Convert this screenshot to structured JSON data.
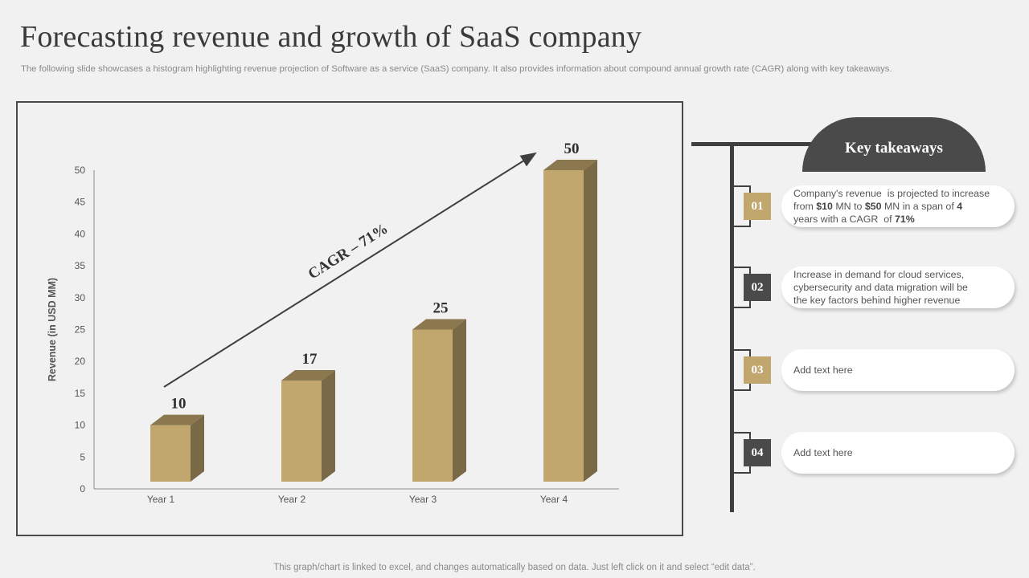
{
  "header": {
    "title": "Forecasting revenue and growth of SaaS company",
    "subtitle": "The following slide showcases a histogram highlighting revenue projection of Software as a service (SaaS) company. It also provides information about compound annual growth rate (CAGR) along with key takeaways."
  },
  "chart_data": {
    "type": "bar",
    "categories": [
      "Year 1",
      "Year 2",
      "Year 3",
      "Year 4"
    ],
    "values": [
      10,
      17,
      25,
      50
    ],
    "data_labels": [
      "10",
      "17",
      "25",
      "50"
    ],
    "xlabel": "",
    "ylabel": "Revenue (in USD MM)",
    "ylim": [
      0,
      50
    ],
    "yticks": [
      0,
      5,
      10,
      15,
      20,
      25,
      30,
      35,
      40,
      45,
      50
    ],
    "annotation": "CAGR – 71%",
    "grid": false,
    "legend": "none",
    "colors": {
      "bar_front": "#c1a66e",
      "bar_side": "#7a6946",
      "bar_top": "#8c784f",
      "arrow": "#3f3f3f"
    }
  },
  "takeaways": {
    "title": "Key takeaways",
    "items": [
      {
        "number": "01",
        "color": "#c1a66e",
        "lines": [
          [
            {
              "t": "Company's revenue  is projected to increase",
              "b": false
            }
          ],
          [
            {
              "t": "from ",
              "b": false
            },
            {
              "t": "$10",
              "b": true
            },
            {
              "t": " MN to ",
              "b": false
            },
            {
              "t": "$50",
              "b": true
            },
            {
              "t": " MN in a span of ",
              "b": false
            },
            {
              "t": "4",
              "b": true
            }
          ],
          [
            {
              "t": "years with a CAGR  of ",
              "b": false
            },
            {
              "t": "71%",
              "b": true
            }
          ]
        ]
      },
      {
        "number": "02",
        "color": "#4a4a4a",
        "lines": [
          [
            {
              "t": "Increase in demand for cloud services,",
              "b": false
            }
          ],
          [
            {
              "t": "cybersecurity and data migration will be",
              "b": false
            }
          ],
          [
            {
              "t": "the key factors behind higher revenue",
              "b": false
            }
          ]
        ]
      },
      {
        "number": "03",
        "color": "#c1a66e",
        "lines": [
          [
            {
              "t": "Add text here",
              "b": false
            }
          ]
        ]
      },
      {
        "number": "04",
        "color": "#4a4a4a",
        "lines": [
          [
            {
              "t": "Add text here",
              "b": false
            }
          ]
        ]
      }
    ]
  },
  "footer": {
    "note": "This graph/chart is linked to excel,  and changes automatically based on data. Just left click on it and select “edit data”."
  }
}
